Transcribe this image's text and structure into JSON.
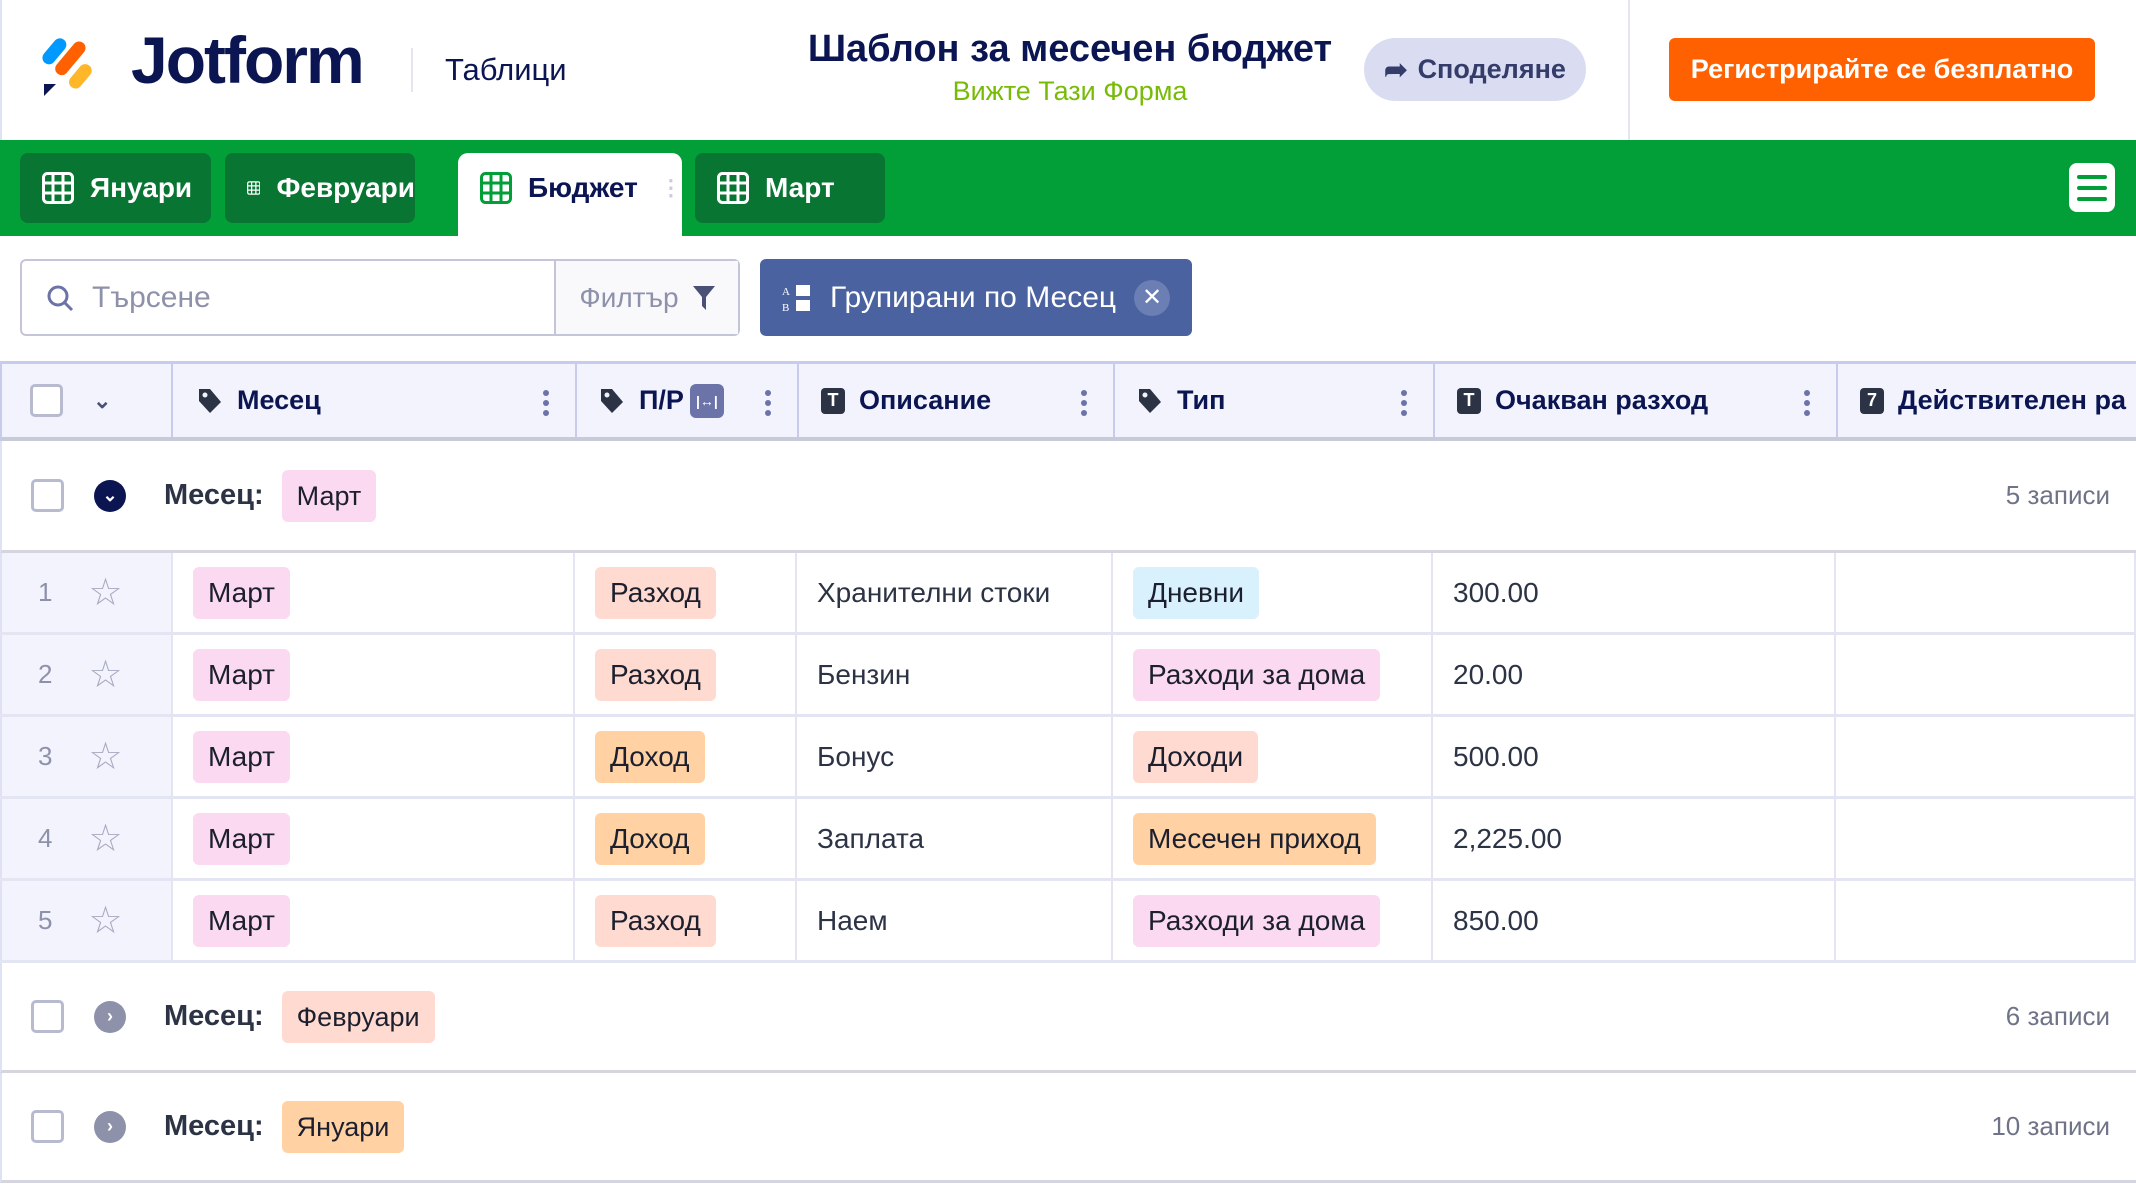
{
  "header": {
    "logo_text": "Jotform",
    "section": "Таблици",
    "title": "Шаблон за месечен бюджет",
    "subtitle": "Вижте Тази Форма",
    "share_label": "Споделяне",
    "register_label": "Регистрирайте се безплатно"
  },
  "tabs": [
    {
      "label": "Януари",
      "active": false
    },
    {
      "label": "Февруари",
      "active": false
    },
    {
      "label": "Бюджет",
      "active": true
    },
    {
      "label": "Март",
      "active": false
    }
  ],
  "toolbar": {
    "search_placeholder": "Търсене",
    "filter_label": "Филтър",
    "group_label": "Групирани по Месец"
  },
  "columns": [
    {
      "label": "Месец",
      "icon": "tag-icon"
    },
    {
      "label": "П/Р",
      "icon": "tag-icon"
    },
    {
      "label": "Описание",
      "icon": "text-icon"
    },
    {
      "label": "Тип",
      "icon": "tag-icon"
    },
    {
      "label": "Очакван разход",
      "icon": "text-icon"
    },
    {
      "label": "Действителен ра",
      "icon": "number-icon"
    }
  ],
  "groups": [
    {
      "prefix": "Месец:",
      "value": "Март",
      "count": "5 записи",
      "expanded": true,
      "color": "#fbd9f1"
    },
    {
      "prefix": "Месец:",
      "value": "Февруари",
      "count": "6 записи",
      "expanded": false,
      "color": "#ffdad0"
    },
    {
      "prefix": "Месец:",
      "value": "Януари",
      "count": "10 записи",
      "expanded": false,
      "color": "#ffd1a3"
    }
  ],
  "rows": [
    {
      "num": "1",
      "month": "Март",
      "pr": "Разход",
      "description": "Хранителни стоки",
      "type": "Дневни",
      "expected": "300.00",
      "actual": ""
    },
    {
      "num": "2",
      "month": "Март",
      "pr": "Разход",
      "description": "Бензин",
      "type": "Разходи за дома",
      "expected": "20.00",
      "actual": ""
    },
    {
      "num": "3",
      "month": "Март",
      "pr": "Доход",
      "description": "Бонус",
      "type": "Доходи",
      "expected": "500.00",
      "actual": ""
    },
    {
      "num": "4",
      "month": "Март",
      "pr": "Доход",
      "description": "Заплата",
      "type": "Месечен приход",
      "expected": "2,225.00",
      "actual": ""
    },
    {
      "num": "5",
      "month": "Март",
      "pr": "Разход",
      "description": "Наем",
      "type": "Разходи за дома",
      "expected": "850.00",
      "actual": ""
    }
  ],
  "tag_colors": {
    "Март": "#fbd9f1",
    "Разход": "#ffdad0",
    "Доход": "#ffd1a3",
    "Дневни": "#d9f1fd",
    "Разходи за дома": "#fbd9f1",
    "Доходи": "#ffdad0",
    "Месечен приход": "#ffd1a3"
  },
  "colors": {
    "brand_green": "#029e37",
    "register_orange": "#ff6100",
    "group_button": "#4a62a0"
  }
}
